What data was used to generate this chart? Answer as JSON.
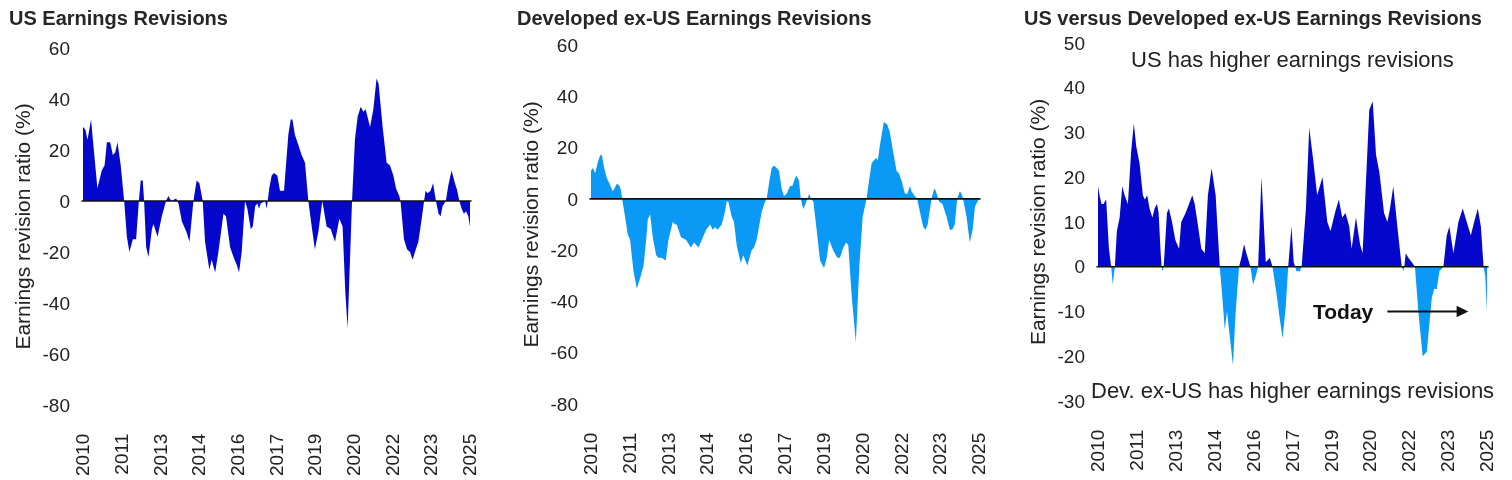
{
  "chart_data": [
    {
      "type": "area",
      "title": "US Earnings Revisions",
      "ylabel": "Earnings revision ratio (%)",
      "x": [
        "2010-01-01",
        "2010-02-03",
        "2010-03-06",
        "2010-04-25",
        "2010-05-28",
        "2010-07-24",
        "2010-09-24",
        "2010-11-03",
        "2010-12-05",
        "2011-01-21",
        "2011-02-27",
        "2011-04-02",
        "2011-05-04",
        "2011-06-19",
        "2011-08-07",
        "2011-09-14",
        "2011-10-20",
        "2011-12-08",
        "2012-01-23",
        "2012-03-02",
        "2012-03-28",
        "2012-04-26",
        "2012-05-15",
        "2012-06-13",
        "2012-07-16",
        "2012-09-03",
        "2012-09-25",
        "2012-11-21",
        "2013-01-21",
        "2013-03-21",
        "2013-04-24",
        "2013-06-03",
        "2013-08-12",
        "2013-09-14",
        "2013-11-01",
        "2014-01-02",
        "2014-02-17",
        "2014-04-13",
        "2014-05-29",
        "2014-07-07",
        "2014-08-23",
        "2014-09-25",
        "2014-11-25",
        "2014-12-28",
        "2015-02-15",
        "2015-04-02",
        "2015-06-12",
        "2015-07-18",
        "2015-09-14",
        "2015-11-02",
        "2015-12-17",
        "2016-01-19",
        "2016-02-26",
        "2016-04-13",
        "2016-05-16",
        "2016-07-03",
        "2016-08-01",
        "2016-09-04",
        "2016-10-06",
        "2016-10-28",
        "2016-11-21",
        "2017-01-22",
        "2017-02-15",
        "2017-03-22",
        "2017-04-25",
        "2017-05-27",
        "2017-07-14",
        "2017-08-21",
        "2017-10-17",
        "2017-12-17",
        "2018-01-20",
        "2018-02-13",
        "2018-03-20",
        "2018-05-08",
        "2018-06-23",
        "2018-08-10",
        "2018-09-26",
        "2018-11-13",
        "2018-12-28",
        "2019-02-16",
        "2019-04-12",
        "2019-06-12",
        "2019-08-08",
        "2019-10-09",
        "2019-12-09",
        "2020-01-24",
        "2020-03-03",
        "2020-04-05",
        "2020-05-08",
        "2020-06-06",
        "2020-07-17",
        "2020-08-24",
        "2020-10-07",
        "2020-11-13",
        "2020-12-16",
        "2021-02-16",
        "2021-04-04",
        "2021-05-19",
        "2021-06-17",
        "2021-08-13",
        "2021-10-09",
        "2021-11-24",
        "2022-01-12",
        "2022-02-18",
        "2022-04-06",
        "2022-04-23",
        "2022-06-11",
        "2022-07-26",
        "2022-09-05",
        "2022-10-11",
        "2022-11-14",
        "2023-01-01",
        "2023-02-17",
        "2023-03-23",
        "2023-04-13",
        "2023-05-11",
        "2023-06-22",
        "2023-07-28",
        "2023-09-07",
        "2023-10-14",
        "2023-11-12",
        "2023-12-10",
        "2024-01-25",
        "2024-02-28",
        "2024-04-15",
        "2024-06-02",
        "2024-07-05",
        "2024-08-03",
        "2024-09-05",
        "2024-10-07",
        "2024-11-05",
        "2024-12-08",
        "2025-01-01"
      ],
      "series": [
        {
          "color": "#0508cc",
          "values": [
            29,
            28,
            24,
            32,
            22,
            5,
            12,
            14,
            23,
            23,
            18,
            19,
            23,
            14,
            0,
            -14,
            -20,
            -15,
            -15,
            0,
            8,
            8,
            0,
            -18,
            -22,
            -11,
            -9,
            -14,
            -6,
            0,
            2,
            0,
            1,
            -1,
            -8,
            -12,
            -16,
            0,
            8,
            7,
            0,
            -16,
            -27,
            -23,
            -28,
            -20,
            -5,
            -6,
            -18,
            -22,
            -25,
            -28,
            -20,
            0,
            -3,
            -11,
            -10,
            -2,
            -1,
            -3,
            -1,
            0,
            -3,
            5,
            10,
            11,
            10,
            4,
            4,
            26,
            32,
            32,
            26,
            22,
            18,
            15,
            0,
            -10,
            -19,
            -12,
            0,
            -10,
            -11,
            -16,
            -7,
            -10,
            -36,
            -50,
            -23,
            0,
            24,
            33,
            37,
            35,
            36,
            29,
            36,
            48,
            46,
            29,
            15,
            14,
            10,
            5,
            2,
            0,
            -15,
            -19,
            -20,
            -23,
            -20,
            -16,
            -7,
            0,
            4,
            3,
            4,
            7,
            0,
            -5,
            -6,
            -2,
            0,
            6,
            12,
            7,
            4,
            0,
            -3,
            -5,
            -4,
            -6,
            -10
          ]
        }
      ],
      "ref_lines": [
        {
          "axis": "y",
          "value": 0,
          "color": "#111111"
        }
      ],
      "xlim": [
        "2010-01",
        "2025-01"
      ],
      "xticks": [
        {
          "value": "2010-01",
          "label": "2010"
        },
        {
          "value": "2011-07",
          "label": "2011"
        },
        {
          "value": "2013-01",
          "label": "2013"
        },
        {
          "value": "2014-07",
          "label": "2014"
        },
        {
          "value": "2016-01",
          "label": "2016"
        },
        {
          "value": "2017-07",
          "label": "2017"
        },
        {
          "value": "2019-01",
          "label": "2019"
        },
        {
          "value": "2020-07",
          "label": "2020"
        },
        {
          "value": "2022-01",
          "label": "2022"
        },
        {
          "value": "2023-07",
          "label": "2023"
        },
        {
          "value": "2025-01",
          "label": "2025"
        }
      ],
      "ylim": [
        -80,
        60
      ],
      "yticks": [
        -80,
        -60,
        -40,
        -20,
        0,
        20,
        40,
        60
      ]
    },
    {
      "type": "area",
      "title": "Developed ex-US Earnings Revisions",
      "ylabel": "Earnings revision ratio (%)",
      "x": [
        "2010-01-01",
        "2010-01-27",
        "2010-03-01",
        "2010-04-04",
        "2010-05-10",
        "2010-06-04",
        "2010-07-06",
        "2010-08-13",
        "2010-09-19",
        "2010-11-02",
        "2010-11-28",
        "2011-01-02",
        "2011-02-09",
        "2011-03-03",
        "2011-03-16",
        "2011-04-27",
        "2011-06-05",
        "2011-07-07",
        "2011-08-23",
        "2011-10-10",
        "2011-11-25",
        "2012-01-13",
        "2012-02-19",
        "2012-03-13",
        "2012-04-15",
        "2012-05-22",
        "2012-07-09",
        "2012-08-11",
        "2012-09-26",
        "2012-11-22",
        "2012-12-29",
        "2013-03-01",
        "2013-04-03",
        "2013-04-25",
        "2013-06-25",
        "2013-09-06",
        "2013-11-11",
        "2013-12-26",
        "2014-02-26",
        "2014-04-14",
        "2014-06-14",
        "2014-08-10",
        "2014-09-16",
        "2014-10-19",
        "2014-11-21",
        "2015-01-21",
        "2015-02-28",
        "2015-04-02",
        "2015-04-24",
        "2015-06-11",
        "2015-07-13",
        "2015-08-20",
        "2015-10-16",
        "2015-11-22",
        "2016-01-18",
        "2016-03-18",
        "2016-04-21",
        "2016-05-27",
        "2016-08-08",
        "2016-09-24",
        "2016-10-17",
        "2016-11-24",
        "2016-12-26",
        "2017-01-28",
        "2017-03-07",
        "2017-04-09",
        "2017-05-16",
        "2017-06-18",
        "2017-07-25",
        "2017-09-12",
        "2017-10-14",
        "2017-11-21",
        "2017-12-14",
        "2018-01-17",
        "2018-02-10",
        "2018-03-17",
        "2018-04-19",
        "2018-05-13",
        "2018-06-11",
        "2018-07-04",
        "2018-08-07",
        "2018-09-22",
        "2018-11-09",
        "2019-01-05",
        "2019-02-12",
        "2019-03-18",
        "2019-05-14",
        "2019-07-10",
        "2019-08-17",
        "2019-10-04",
        "2019-11-11",
        "2019-12-13",
        "2020-01-28",
        "2020-03-29",
        "2020-05-16",
        "2020-07-03",
        "2020-08-27",
        "2020-10-06",
        "2020-11-08",
        "2020-12-10",
        "2021-01-08",
        "2021-02-02",
        "2021-03-04",
        "2021-04-28",
        "2021-06-15",
        "2021-07-22",
        "2021-09-09",
        "2021-10-24",
        "2021-11-27",
        "2022-01-05",
        "2022-02-20",
        "2022-03-27",
        "2022-05-01",
        "2022-05-23",
        "2022-07-10",
        "2022-08-12",
        "2022-09-19",
        "2022-11-06",
        "2022-12-09",
        "2023-01-07",
        "2023-03-03",
        "2023-04-09",
        "2023-05-03",
        "2023-06-18",
        "2023-08-05",
        "2023-10-01",
        "2023-11-16",
        "2023-12-19",
        "2024-01-25",
        "2024-02-28",
        "2024-04-06",
        "2024-04-28",
        "2024-05-21",
        "2024-07-09",
        "2024-08-24",
        "2024-10-03",
        "2024-11-05",
        "2025-01-01"
      ],
      "series": [
        {
          "color": "#0a99f5",
          "values": [
            11,
            12,
            10,
            14,
            17,
            17,
            12,
            8,
            6,
            3,
            4,
            6,
            5,
            3,
            0,
            -7,
            -14,
            -16,
            -28,
            -35,
            -31,
            -26,
            -16,
            -8,
            -6,
            -15,
            -22,
            -23,
            -23,
            -24,
            -16,
            -9,
            -10,
            -10,
            -15,
            -16,
            -19,
            -17,
            -19,
            -16,
            -12,
            -10,
            -12,
            -11,
            -12,
            -10,
            -6,
            -1,
            -1,
            -7,
            -9,
            -18,
            -25,
            -22,
            -26,
            -20,
            -19,
            -16,
            -5,
            -1,
            0,
            7,
            12,
            13,
            12,
            11,
            4,
            1,
            2,
            5,
            5,
            8,
            9,
            7,
            0,
            -4,
            -2,
            0,
            2,
            0,
            -1,
            -12,
            -24,
            -27,
            -23,
            -16,
            -20,
            -23,
            -23,
            -19,
            -17,
            -18,
            -37,
            -56,
            -27,
            -7,
            0,
            8,
            14,
            15,
            16,
            15,
            21,
            30,
            29,
            26,
            18,
            11,
            10,
            7,
            2,
            2,
            5,
            3,
            1,
            0,
            -5,
            -11,
            -12,
            -10,
            0,
            4,
            3,
            -1,
            -2,
            -7,
            -12,
            -12,
            -10,
            0,
            3,
            2,
            0,
            -7,
            -17,
            -12,
            -3,
            0
          ]
        }
      ],
      "ref_lines": [
        {
          "axis": "y",
          "value": 0,
          "color": "#111111"
        }
      ],
      "xlim": [
        "2010-01",
        "2025-01"
      ],
      "xticks": [
        {
          "value": "2010-01",
          "label": "2010"
        },
        {
          "value": "2011-07",
          "label": "2011"
        },
        {
          "value": "2013-01",
          "label": "2013"
        },
        {
          "value": "2014-07",
          "label": "2014"
        },
        {
          "value": "2016-01",
          "label": "2016"
        },
        {
          "value": "2017-07",
          "label": "2017"
        },
        {
          "value": "2019-01",
          "label": "2019"
        },
        {
          "value": "2020-07",
          "label": "2020"
        },
        {
          "value": "2022-01",
          "label": "2022"
        },
        {
          "value": "2023-07",
          "label": "2023"
        },
        {
          "value": "2025-01",
          "label": "2025"
        }
      ],
      "ylim": [
        -80,
        60
      ],
      "yticks": [
        -80,
        -60,
        -40,
        -20,
        0,
        20,
        40,
        60
      ]
    },
    {
      "type": "area",
      "title": "US versus Developed ex-US Earnings Revisions",
      "ylabel": "Earnings revision ratio (%)",
      "annotations": [
        "US has higher earnings revisions",
        "Today",
        "Dev. ex-US has higher earnings revisions"
      ],
      "x": [
        "2010-01-01",
        "2010-01-23",
        "2010-02-20",
        "2010-03-19",
        "2010-04-26",
        "2010-06-04",
        "2010-07-06",
        "2010-07-28",
        "2010-08-26",
        "2010-09-24",
        "2010-11-02",
        "2010-12-09",
        "2011-01-11",
        "2011-02-26",
        "2011-04-14",
        "2011-05-21",
        "2011-06-23",
        "2011-08-10",
        "2011-09-25",
        "2011-10-23",
        "2011-11-25",
        "2011-12-28",
        "2012-02-06",
        "2012-03-08",
        "2012-04-11",
        "2012-05-04",
        "2012-06-02",
        "2012-06-15",
        "2012-06-28",
        "2012-07-13",
        "2012-07-22",
        "2012-08-29",
        "2012-09-26",
        "2012-11-09",
        "2012-12-25",
        "2013-02-16",
        "2013-03-18",
        "2013-05-19",
        "2013-07-06",
        "2013-08-21",
        "2013-09-24",
        "2013-11-11",
        "2013-12-26",
        "2014-02-13",
        "2014-03-29",
        "2014-05-20",
        "2014-07-16",
        "2014-09-12",
        "2014-10-19",
        "2014-11-21",
        "2014-12-23",
        "2015-02-10",
        "2015-03-17",
        "2015-04-24",
        "2015-06-11",
        "2015-07-13",
        "2015-08-20",
        "2015-09-22",
        "2015-11-18",
        "2015-12-25",
        "2016-02-03",
        "2016-03-05",
        "2016-04-21",
        "2016-06-21",
        "2016-08-17",
        "2016-09-24",
        "2016-11-19",
        "2017-01-07",
        "2017-02-13",
        "2017-03-29",
        "2017-05-03",
        "2017-06-18",
        "2017-07-20",
        "2017-08-09",
        "2017-08-27",
        "2017-10-14",
        "2017-11-08",
        "2018-01-08",
        "2018-02-23",
        "2018-04-19",
        "2018-06-15",
        "2018-08-29",
        "2018-11-05",
        "2018-12-20",
        "2019-02-20",
        "2019-04-16",
        "2019-06-03",
        "2019-07-19",
        "2019-09-10",
        "2019-10-13",
        "2019-12-13",
        "2020-02-09",
        "2020-03-16",
        "2020-05-02",
        "2020-06-18",
        "2020-08-05",
        "2020-09-21",
        "2020-11-08",
        "2021-01-12",
        "2021-02-28",
        "2021-04-06",
        "2021-05-22",
        "2021-07-18",
        "2021-09-18",
        "2021-10-11",
        "2021-10-24",
        "2021-11-14",
        "2021-12-20",
        "2022-02-07",
        "2022-03-23",
        "2022-05-10",
        "2022-07-10",
        "2022-09-06",
        "2022-11-15",
        "2022-12-18",
        "2023-01-24",
        "2023-03-03",
        "2023-04-28",
        "2023-06-14",
        "2023-07-21",
        "2023-09-16",
        "2023-11-25",
        "2024-01-25",
        "2024-03-22",
        "2024-05-18",
        "2024-07-04",
        "2024-08-24",
        "2024-10-07",
        "2024-11-14",
        "2024-12-07",
        "2025-01-01"
      ],
      "series": [
        {
          "color": "#0508cc",
          "values": [
            18,
            16,
            14,
            14,
            15,
            4,
            0,
            null,
            0,
            8,
            11,
            18,
            16,
            14,
            26,
            32,
            27,
            23,
            16,
            15,
            16,
            13,
            11,
            13,
            14,
            12,
            3,
            0,
            null,
            0,
            2,
            12,
            13,
            10,
            6,
            4,
            10,
            12,
            14,
            16,
            14,
            9,
            4,
            3,
            16,
            22,
            16,
            0,
            null,
            null,
            null,
            null,
            null,
            null,
            0,
            2,
            5,
            3,
            0,
            null,
            null,
            0,
            20,
            1,
            2,
            0,
            null,
            null,
            null,
            null,
            0,
            9,
            1,
            0,
            null,
            null,
            0,
            13,
            31,
            24,
            16,
            20,
            10,
            8,
            12,
            15,
            11,
            12,
            9,
            4,
            11,
            5,
            3,
            19,
            35,
            37,
            25,
            21,
            12,
            10,
            13,
            18,
            9,
            0,
            null,
            0,
            3,
            2,
            1,
            0,
            null,
            null,
            null,
            null,
            null,
            null,
            null,
            0,
            7,
            9,
            3,
            10,
            13,
            10,
            7,
            10,
            13,
            9,
            0,
            null,
            null
          ]
        },
        {
          "color": "#0a99f5",
          "values": [
            null,
            null,
            null,
            null,
            null,
            null,
            0,
            -4,
            0,
            null,
            null,
            null,
            null,
            null,
            null,
            null,
            null,
            null,
            null,
            null,
            null,
            null,
            null,
            null,
            null,
            null,
            null,
            0,
            -1,
            0,
            null,
            null,
            null,
            null,
            null,
            null,
            null,
            null,
            null,
            null,
            null,
            null,
            null,
            null,
            null,
            null,
            null,
            0,
            -7,
            -14,
            -10,
            -17,
            -22,
            -10,
            0,
            null,
            null,
            null,
            0,
            -4,
            -2,
            0,
            null,
            null,
            null,
            0,
            -6,
            -12,
            -16,
            -9,
            0,
            null,
            null,
            0,
            -1,
            -1,
            0,
            null,
            null,
            null,
            null,
            null,
            null,
            null,
            null,
            null,
            null,
            null,
            null,
            null,
            null,
            null,
            null,
            null,
            null,
            null,
            null,
            null,
            null,
            null,
            null,
            null,
            null,
            0,
            -1,
            0,
            null,
            null,
            null,
            0,
            -10,
            -20,
            -19,
            -7,
            -5,
            -5,
            -1,
            0,
            null,
            null,
            null,
            null,
            null,
            null,
            null,
            null,
            null,
            null,
            0,
            -2,
            -10
          ]
        }
      ],
      "ref_lines": [
        {
          "axis": "y",
          "value": 0,
          "color": "#111111"
        }
      ],
      "xlim": [
        "2010-01",
        "2025-01"
      ],
      "xticks": [
        {
          "value": "2010-01",
          "label": "2010"
        },
        {
          "value": "2011-07",
          "label": "2011"
        },
        {
          "value": "2013-01",
          "label": "2013"
        },
        {
          "value": "2014-07",
          "label": "2014"
        },
        {
          "value": "2016-01",
          "label": "2016"
        },
        {
          "value": "2017-07",
          "label": "2017"
        },
        {
          "value": "2019-01",
          "label": "2019"
        },
        {
          "value": "2020-07",
          "label": "2020"
        },
        {
          "value": "2022-01",
          "label": "2022"
        },
        {
          "value": "2023-07",
          "label": "2023"
        },
        {
          "value": "2025-01",
          "label": "2025"
        }
      ],
      "ylim": [
        -30,
        50
      ],
      "yticks": [
        -30,
        -20,
        -10,
        0,
        10,
        20,
        30,
        40,
        50
      ]
    }
  ]
}
